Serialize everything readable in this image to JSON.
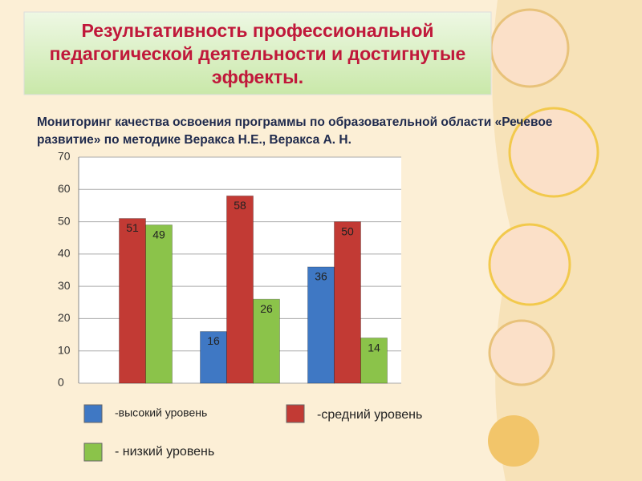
{
  "title": "Результативность профессиональной педагогической деятельности и достигнутые эффекты.",
  "chart_data": {
    "type": "bar",
    "title": "Мониторинг качества освоения программы по образовательной области «Речевое развитие» по методике  Веракса Н.Е., Веракса А. Н.",
    "categories": [
      null,
      null,
      null
    ],
    "series": [
      {
        "name": "-высокий уровень",
        "color": "#3f78c4",
        "values": [
          null,
          16,
          36
        ]
      },
      {
        "name": "-средний уровень",
        "color": "#c23a34",
        "values": [
          51,
          58,
          50
        ]
      },
      {
        "name": "- низкий уровень",
        "color": "#8bc34a",
        "values": [
          49,
          26,
          14
        ]
      }
    ],
    "ylim": [
      0,
      70
    ],
    "yticks": [
      0,
      10,
      20,
      30,
      40,
      50,
      60,
      70
    ],
    "grid": true
  }
}
